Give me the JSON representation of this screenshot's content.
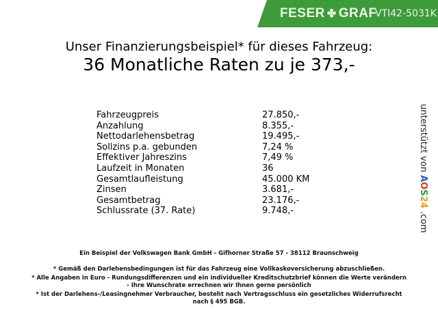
{
  "header": {
    "brand_left": "FESER",
    "brand_right": "GRAF",
    "code": "VTI42-5031K",
    "brand_color": "#3e9b3a"
  },
  "title": {
    "line1": "Unser Finanzierungsbeispiel* für dieses Fahrzeug:",
    "line2": "36 Monatliche Raten zu je 373,-"
  },
  "table": [
    {
      "label": "Fahrzeugpreis",
      "value": "27.850,-"
    },
    {
      "label": "Anzahlung",
      "value": "8.355,-"
    },
    {
      "label": "Nettodarlehensbetrag",
      "value": "19.495,-"
    },
    {
      "label": "Sollzins p.a. gebunden",
      "value": "7,24 %"
    },
    {
      "label": "Effektiver Jahreszins",
      "value": "7,49 %"
    },
    {
      "label": "Laufzeit in Monaten",
      "value": "36"
    },
    {
      "label": "Gesamtlaufleistung",
      "value": "45.000 KM"
    },
    {
      "label": "Zinsen",
      "value": "3.681,-"
    },
    {
      "label": "Gesamtbetrag",
      "value": "23.176,-"
    },
    {
      "label": "Schlussrate (37. Rate)",
      "value": "9.748,-"
    }
  ],
  "side": {
    "prefix": "unterstützt von",
    "logo_a": "A",
    "logo_o": "O",
    "logo_s": "S",
    "logo_n": "24",
    "suffix": ".com"
  },
  "footer": {
    "bank": "Ein Beispiel der Volkswagen Bank GmbH - Gifhorner Straße 57 - 38112 Braunschweig",
    "notes": [
      "* Gemäß den Darlehensbedingungen ist für das Fahrzeug eine Vollkaskoversicherung abzuschließen.",
      "* Alle Angaben in Euro - Rundungsdifferenzen und ein individueller Kreditschutzbrief können die Werte verändern",
      "- Ihre Wunschrate errechnen wir Ihnen gerne persönlich",
      "* Ist der Darlehens-/Leasingnehmer Verbraucher, besteht nach Vertragsschluss ein gesetzliches Widerrufsrecht",
      "nach § 495 BGB."
    ]
  }
}
